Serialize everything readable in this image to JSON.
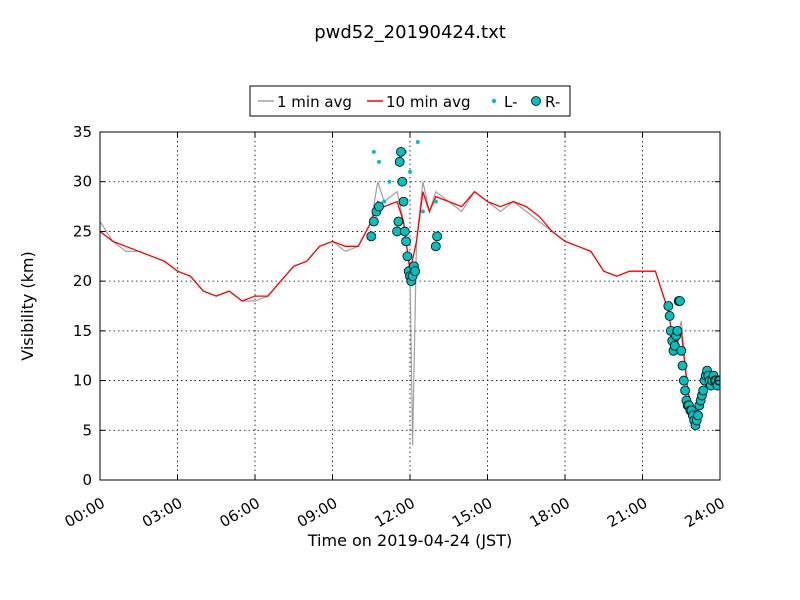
{
  "chart_data": {
    "type": "line",
    "title": "pwd52_20190424.txt",
    "xlabel": "Time on 2019-04-24 (JST)",
    "ylabel": "Visibility (km)",
    "xlim": [
      0,
      24
    ],
    "ylim": [
      0,
      35
    ],
    "x_ticks": [
      0,
      3,
      6,
      9,
      12,
      15,
      18,
      21,
      24
    ],
    "x_tick_labels": [
      "00:00",
      "03:00",
      "06:00",
      "09:00",
      "12:00",
      "15:00",
      "18:00",
      "21:00",
      "24:00"
    ],
    "y_ticks": [
      0,
      5,
      10,
      15,
      20,
      25,
      30,
      35
    ],
    "y_tick_labels": [
      "0",
      "5",
      "10",
      "15",
      "20",
      "25",
      "30",
      "35"
    ],
    "grid": true,
    "legend_position": "top-center",
    "series": [
      {
        "name": "1 min avg",
        "color": "#a0a0a0",
        "x": [
          0.0,
          0.5,
          1.0,
          1.5,
          2.0,
          2.5,
          3.0,
          3.5,
          4.0,
          4.5,
          5.0,
          5.5,
          6.0,
          6.5,
          7.0,
          7.5,
          8.0,
          8.5,
          9.0,
          9.5,
          10.0,
          10.5,
          10.75,
          11.0,
          11.5,
          11.75,
          12.0,
          12.1,
          12.25,
          12.5,
          12.75,
          13.0,
          13.5,
          14.0,
          14.5,
          15.0,
          15.5,
          16.0,
          16.5,
          17.0,
          17.5,
          18.0,
          18.5,
          19.0,
          19.5,
          20.0,
          20.5,
          21.0,
          21.5,
          22.0,
          22.25,
          22.5,
          22.75,
          23.0,
          23.25,
          23.5,
          24.0
        ],
        "y": [
          26,
          24,
          23,
          23,
          22.5,
          22,
          21,
          20.5,
          19,
          18.5,
          19,
          18,
          18,
          18.5,
          20,
          21.5,
          22,
          23.5,
          24,
          23,
          23.5,
          26,
          30,
          28,
          29,
          26,
          21,
          3.5,
          24,
          30,
          27,
          29,
          28,
          27,
          29,
          28,
          27,
          28,
          27,
          26,
          25,
          24,
          23.5,
          23,
          21,
          20.5,
          21,
          21,
          21,
          17,
          13,
          16,
          9,
          6.5,
          7.5,
          10,
          10
        ]
      },
      {
        "name": "10 min avg",
        "color": "#ff0000",
        "x": [
          0.0,
          0.5,
          1.0,
          1.5,
          2.0,
          2.5,
          3.0,
          3.5,
          4.0,
          4.5,
          5.0,
          5.5,
          6.0,
          6.5,
          7.0,
          7.5,
          8.0,
          8.5,
          9.0,
          9.5,
          10.0,
          10.5,
          10.75,
          11.0,
          11.5,
          11.75,
          12.0,
          12.25,
          12.5,
          12.75,
          13.0,
          13.5,
          14.0,
          14.5,
          15.0,
          15.5,
          16.0,
          16.5,
          17.0,
          17.5,
          18.0,
          18.5,
          19.0,
          19.5,
          20.0,
          20.5,
          21.0,
          21.5,
          22.0,
          22.25,
          22.5,
          22.75,
          23.0,
          23.25,
          23.5,
          24.0
        ],
        "y": [
          25,
          24,
          23.5,
          23,
          22.5,
          22,
          21,
          20.5,
          19,
          18.5,
          19,
          18,
          18.5,
          18.5,
          20,
          21.5,
          22,
          23.5,
          24,
          23.5,
          23.5,
          26,
          28,
          27.5,
          28,
          26,
          21,
          24,
          29,
          27,
          28.5,
          28,
          27.5,
          29,
          28,
          27.5,
          28,
          27.5,
          26.5,
          25,
          24,
          23.5,
          23,
          21,
          20.5,
          21,
          21,
          21,
          17,
          13,
          15,
          9,
          6.5,
          7.5,
          10,
          10
        ]
      },
      {
        "name": "L-",
        "color": "#00c0c0",
        "marker": "small-dot",
        "x": [
          10.6,
          10.8,
          11.0,
          11.2,
          11.6,
          11.8,
          12.0,
          12.3,
          12.5,
          13.0
        ],
        "y": [
          33,
          32,
          28,
          30,
          32,
          33,
          31,
          34,
          27,
          28
        ]
      },
      {
        "name": "R-",
        "color": "#00c0c0",
        "edge_color": "#000000",
        "marker": "circle",
        "x": [
          10.5,
          10.6,
          10.7,
          10.8,
          11.5,
          11.55,
          11.6,
          11.65,
          11.7,
          11.75,
          11.8,
          11.85,
          11.9,
          11.95,
          12.0,
          12.05,
          12.1,
          12.15,
          12.2,
          13.0,
          13.05,
          22.0,
          22.05,
          22.1,
          22.15,
          22.2,
          22.25,
          22.3,
          22.35,
          22.4,
          22.45,
          22.5,
          22.55,
          22.6,
          22.65,
          22.7,
          22.75,
          22.8,
          22.85,
          22.9,
          22.95,
          23.0,
          23.05,
          23.1,
          23.15,
          23.2,
          23.25,
          23.3,
          23.35,
          23.4,
          23.45,
          23.5,
          23.55,
          23.6,
          23.65,
          23.7,
          23.75,
          23.8,
          23.85,
          23.9,
          23.95,
          24.0
        ],
        "y": [
          24.5,
          26,
          27,
          27.5,
          25,
          26,
          32,
          33,
          30,
          28,
          25,
          24,
          22.5,
          21,
          20.5,
          20,
          20.5,
          21.5,
          21,
          23.5,
          24.5,
          17.5,
          16.5,
          15,
          14,
          13,
          13.5,
          14.5,
          15,
          18,
          18,
          13,
          11.5,
          10,
          9,
          8,
          7.5,
          7.5,
          7,
          7,
          6.5,
          6,
          5.5,
          6,
          6.5,
          7.5,
          8,
          8.5,
          9,
          10,
          10.5,
          11,
          10.5,
          10,
          9.5,
          10,
          10.5,
          10,
          10,
          9.5,
          10,
          10
        ]
      }
    ],
    "legend": [
      {
        "label": "1 min avg",
        "kind": "line",
        "color": "#a0a0a0"
      },
      {
        "label": "10 min avg",
        "kind": "line",
        "color": "#ff0000"
      },
      {
        "label": "L-",
        "kind": "dot",
        "color": "#00c0c0"
      },
      {
        "label": "R-",
        "kind": "circle",
        "color": "#00c0c0"
      }
    ]
  }
}
